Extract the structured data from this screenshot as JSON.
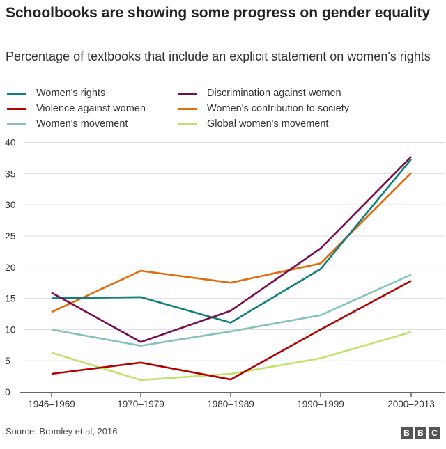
{
  "chart_data": {
    "type": "line",
    "title": "Schoolbooks are showing some progress on gender equality",
    "subtitle": "Percentage of textbooks that include an explicit statement on women's rights",
    "categories": [
      "1946–1969",
      "1970–1979",
      "1980–1989",
      "1990–1999",
      "2000–2013"
    ],
    "ylim": [
      0,
      40
    ],
    "yticks": [
      0,
      5,
      10,
      15,
      20,
      25,
      30,
      35,
      40
    ],
    "grid": true,
    "legend_placement": "top",
    "series": [
      {
        "name": "Women's rights",
        "color": "#0f7f7f",
        "values": [
          15.0,
          15.2,
          11.1,
          19.7,
          37.3
        ]
      },
      {
        "name": "Discrimination against women",
        "color": "#7a0b4f",
        "values": [
          15.9,
          8.0,
          13.0,
          23.0,
          37.7
        ]
      },
      {
        "name": "Violence against women",
        "color": "#b30000",
        "values": [
          2.9,
          4.7,
          2.0,
          10.0,
          17.8
        ]
      },
      {
        "name": "Women's contribution to society",
        "color": "#e06c0c",
        "values": [
          12.8,
          19.4,
          17.5,
          20.6,
          35.1
        ]
      },
      {
        "name": "Women's movement",
        "color": "#84c1bf",
        "values": [
          10.0,
          7.4,
          9.7,
          12.3,
          18.8
        ]
      },
      {
        "name": "Global women's movement",
        "color": "#bfe36a",
        "values": [
          6.3,
          1.9,
          2.9,
          5.4,
          9.6
        ]
      }
    ]
  },
  "footer": {
    "source": "Source: Bromley et al, 2016",
    "logo": "BBC"
  }
}
